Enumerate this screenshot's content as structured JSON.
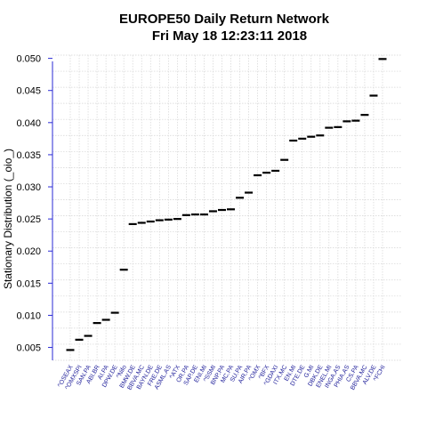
{
  "chart_data": {
    "type": "scatter",
    "title": "EUROPE50  Daily Return Network",
    "subtitle": "Fri May 18 12:23:11 2018",
    "ylabel": "Stationary Distribution (_oio_)",
    "xlabel": "",
    "ylim": [
      0.003,
      0.0505
    ],
    "yticks": [
      "0.005",
      "0.010",
      "0.015",
      "0.020",
      "0.025",
      "0.030",
      "0.035",
      "0.040",
      "0.045",
      "0.050"
    ],
    "grid": true,
    "categories": [
      "^OSEAX",
      "^OMXSPI",
      "SAN.PA",
      "ABI.BR",
      "AI.PA",
      "DPW.DE",
      "^Nifo",
      "BMW.DE",
      "BBVA.MC",
      "BAYN.DE",
      "FRE.DE",
      "ASML.AS",
      "^ATX",
      "OR.PA",
      "SAP.DE",
      "ENI.MI",
      "^SSMI",
      "BNP.PA",
      "MC.PA",
      "SU.PA",
      "AIR.PA",
      "^OMX",
      "^BFX",
      "^GDAXI",
      "ITX.MC",
      "EN.MI",
      "DTE.DE",
      "G.MI",
      "DBK.DE",
      "ENEL.MI",
      "INGA.AS",
      "PHIA.AS",
      "CS.PA",
      "BBVA.MC",
      "ALV.DE",
      "^FCHI"
    ],
    "values": [
      0.0046,
      0.0062,
      0.0068,
      0.0088,
      0.0093,
      0.0104,
      0.0171,
      0.0242,
      0.0244,
      0.0246,
      0.0248,
      0.0249,
      0.025,
      0.0256,
      0.0257,
      0.0257,
      0.0262,
      0.0264,
      0.0265,
      0.0283,
      0.0291,
      0.0318,
      0.0322,
      0.0325,
      0.0342,
      0.0372,
      0.0375,
      0.0378,
      0.038,
      0.0392,
      0.0393,
      0.0402,
      0.0403,
      0.0412,
      0.0442,
      0.0499
    ]
  }
}
